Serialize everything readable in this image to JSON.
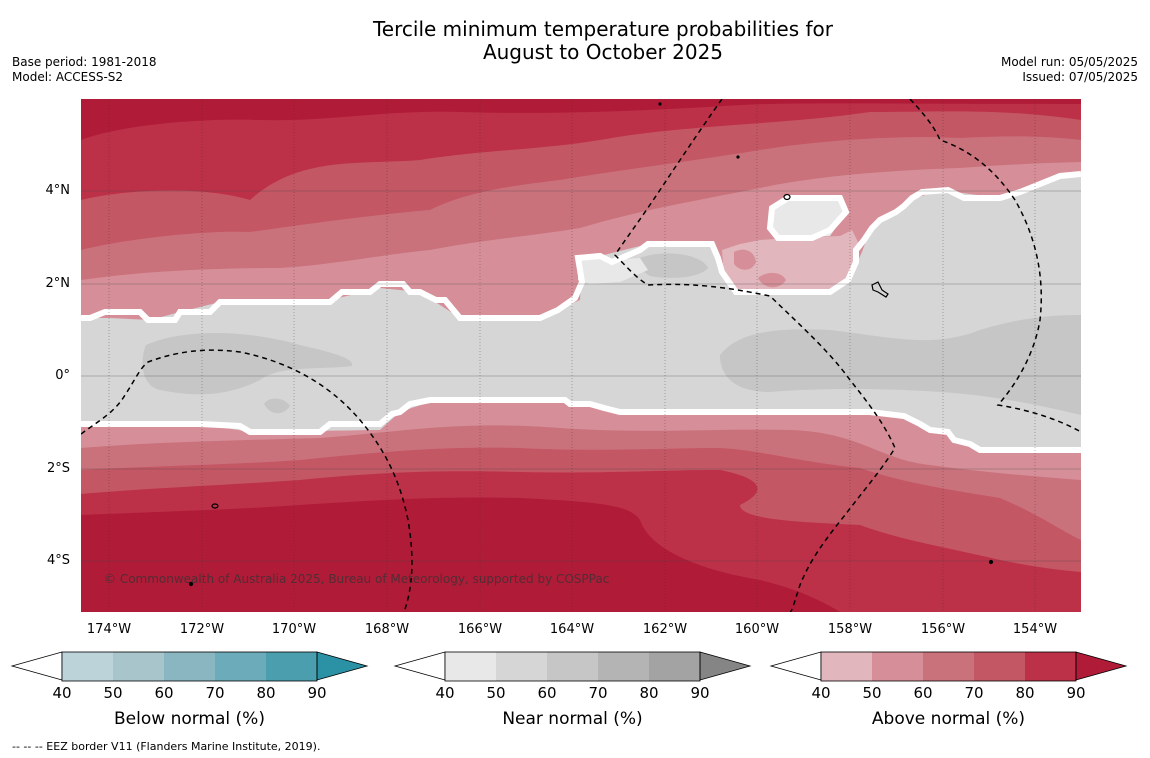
{
  "title": {
    "line1": "Tercile minimum temperature probabilities for",
    "line2": "August to October 2025"
  },
  "meta_left": {
    "base_period": "Base period: 1981-2018",
    "model": "Model: ACCESS-S2"
  },
  "meta_right": {
    "model_run": "Model run: 05/05/2025",
    "issued": "Issued: 07/05/2025"
  },
  "axes": {
    "lat_labels": [
      "4°N",
      "2°N",
      "0°",
      "2°S",
      "4°S"
    ],
    "lon_labels": [
      "174°W",
      "172°W",
      "170°W",
      "168°W",
      "166°W",
      "164°W",
      "162°W",
      "160°W",
      "158°W",
      "156°W",
      "154°W"
    ]
  },
  "copyright": "© Commonwealth of Australia 2025, Bureau of Meteorology, supported by COSPPac",
  "colorbars": [
    {
      "name": "below",
      "title": "Below normal (%)",
      "ticks": [
        "40",
        "50",
        "60",
        "70",
        "80",
        "90"
      ],
      "colors": [
        "#bcd3da",
        "#a7c5cb",
        "#8ab6c1",
        "#6cabb9",
        "#4b9eae",
        "#2b91a4"
      ]
    },
    {
      "name": "near",
      "title": "Near normal (%)",
      "ticks": [
        "40",
        "50",
        "60",
        "70",
        "80",
        "90"
      ],
      "colors": [
        "#e8e8e8",
        "#d6d6d6",
        "#c6c6c6",
        "#b4b4b4",
        "#a3a3a3",
        "#858585"
      ]
    },
    {
      "name": "above",
      "title": "Above normal (%)",
      "ticks": [
        "40",
        "50",
        "60",
        "70",
        "80",
        "90"
      ],
      "colors": [
        "#e2b6bd",
        "#d68f98",
        "#ca727c",
        "#c45764",
        "#bc3048",
        "#b01b38"
      ]
    }
  ],
  "footer": "--  --  -- EEZ border V11 (Flanders Marine Institute, 2019)."
}
